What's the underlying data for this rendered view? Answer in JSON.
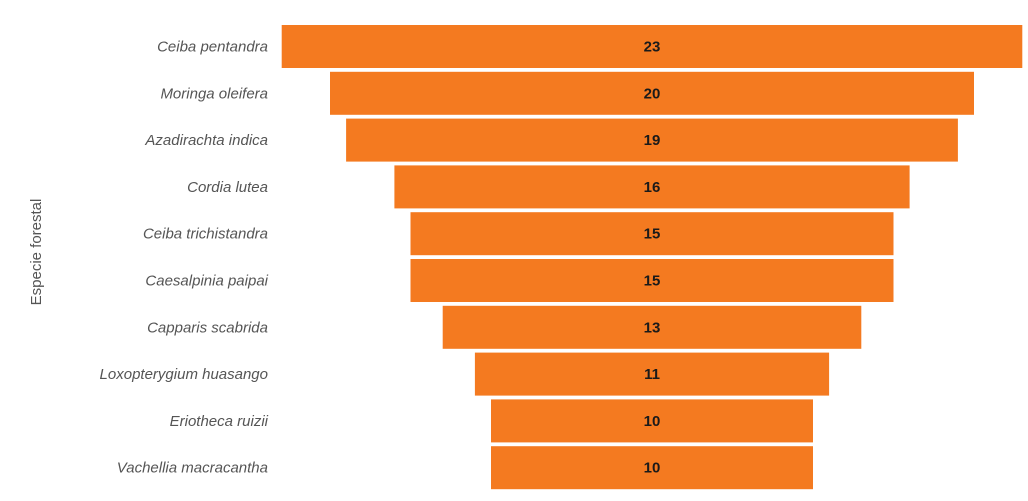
{
  "chart_data": {
    "type": "bar",
    "layout": "funnel",
    "orientation": "horizontal",
    "ylabel": "Especie forestal",
    "categories": [
      "Ceiba pentandra",
      "Moringa oleifera",
      "Azadirachta indica",
      "Cordia lutea",
      "Ceiba trichistandra",
      "Caesalpinia paipai",
      "Capparis scabrida",
      "Loxopterygium huasango",
      "Eriotheca ruizii",
      "Vachellia macracantha"
    ],
    "values": [
      23,
      20,
      19,
      16,
      15,
      15,
      13,
      11,
      10,
      10
    ],
    "data_labels": [
      "23",
      "20",
      "19",
      "16",
      "15",
      "15",
      "13",
      "11",
      "10",
      "10"
    ],
    "bar_color": "#f47a20",
    "grid": false,
    "legend": "none"
  }
}
